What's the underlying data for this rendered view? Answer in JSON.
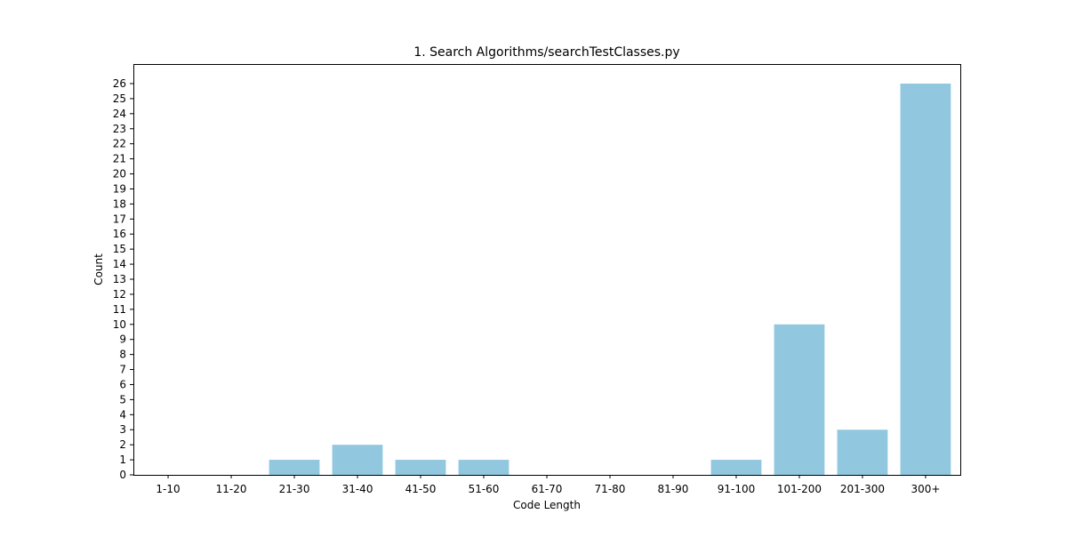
{
  "chart_data": {
    "type": "bar",
    "title": "1. Search Algorithms/searchTestClasses.py",
    "xlabel": "Code Length",
    "ylabel": "Count",
    "categories": [
      "1-10",
      "11-20",
      "21-30",
      "31-40",
      "41-50",
      "51-60",
      "61-70",
      "71-80",
      "81-90",
      "91-100",
      "101-200",
      "201-300",
      "300+"
    ],
    "values": [
      0,
      0,
      1,
      2,
      1,
      1,
      0,
      0,
      0,
      1,
      10,
      3,
      26
    ],
    "ylim": [
      0,
      27.3
    ],
    "yticks": [
      0,
      1,
      2,
      3,
      4,
      5,
      6,
      7,
      8,
      9,
      10,
      11,
      12,
      13,
      14,
      15,
      16,
      17,
      18,
      19,
      20,
      21,
      22,
      23,
      24,
      25,
      26
    ],
    "bar_color": "#92c8df",
    "grid": false,
    "legend": "none"
  }
}
